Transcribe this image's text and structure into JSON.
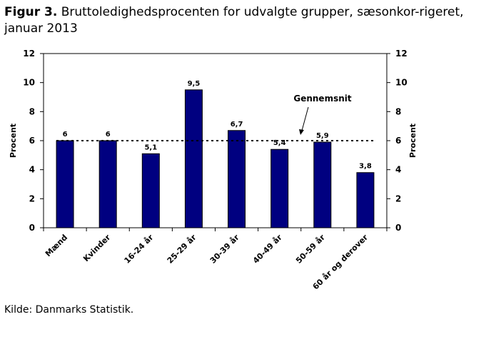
{
  "header": {
    "figure_label": "Figur 3.",
    "title": "Bruttoledighedsprocenten for udvalgte grupper, sæsonkor-rigeret, januar 2013"
  },
  "footer": {
    "source": "Kilde: Danmarks Statistik."
  },
  "chart_data": {
    "type": "bar",
    "categories": [
      "Mænd",
      "Kvinder",
      "16-24 år",
      "25-29 år",
      "30-39 år",
      "40-49 år",
      "50-59 år",
      "60 år og derover"
    ],
    "values": [
      6,
      6,
      5.1,
      9.5,
      6.7,
      5.4,
      5.9,
      3.8
    ],
    "data_labels": [
      "6",
      "6",
      "5,1",
      "9,5",
      "6,7",
      "5,4",
      "5,9",
      "3,8"
    ],
    "ylabel": "Procent",
    "ylabel_right": "Procent",
    "ylim": [
      0,
      12
    ],
    "yticks": [
      0,
      2,
      4,
      6,
      8,
      10,
      12
    ],
    "reference_line": {
      "value": 6,
      "label": "Gennemsnit",
      "style": "dotted"
    },
    "bar_color": "#000080",
    "grid": false
  }
}
